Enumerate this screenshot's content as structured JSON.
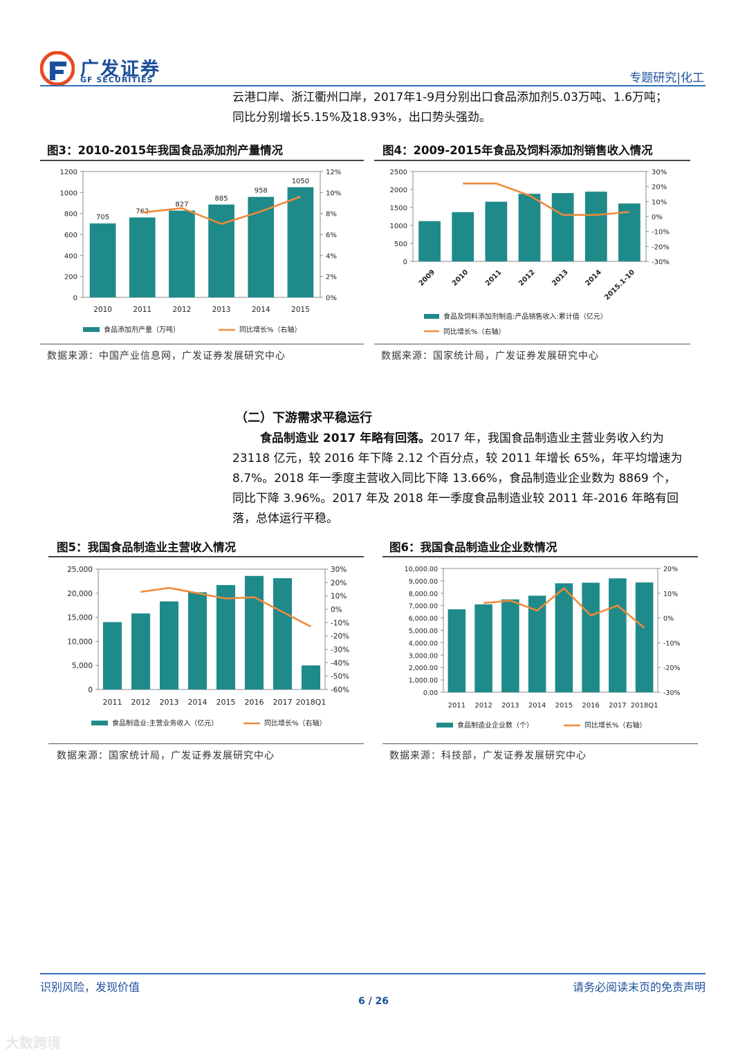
{
  "header": {
    "brand_cn": "广发证券",
    "brand_en": "GF SECURITIES",
    "section": "专题研究|化工"
  },
  "intro": {
    "line1": "云港口岸、浙江衢州口岸，2017年1-9月分别出口食品添加剂5.03万吨、1.6万吨；",
    "line2": "同比分别增长5.15%及18.93%，出口势头强劲。"
  },
  "section2": {
    "heading": "（二）下游需求平稳运行",
    "lead_bold": "食品制造业 2017 年略有回落。",
    "p_line1": "2017 年，我国食品制造业主营业务收入约为",
    "p_line2": "23118 亿元，较 2016 年下降 2.12 个百分点，较 2011 年增长 65%，年平均增速为",
    "p_line3": "8.7%。2018 年一季度主营收入同比下降 13.66%，食品制造业企业数为 8869 个，",
    "p_line4": "同比下降 3.96%。2017 年及 2018 年一季度食品制造业较 2011 年-2016 年略有回",
    "p_line5": "落，总体运行平稳。"
  },
  "footer": {
    "left": "识别风险，发现价值",
    "right": "请务必阅读末页的免责声明",
    "page": "6 / 26"
  },
  "watermark": "大数跨境",
  "colors": {
    "bar": "#1f8a8a",
    "line": "#ee8a3a",
    "brand": "#1b4f9c"
  },
  "chart_data": [
    {
      "id": "fig3",
      "type": "bar",
      "title": "图3：2010-2015年我国食品添加剂产量情况",
      "source": "数据来源：中国产业信息网，广发证券发展研究中心",
      "categories": [
        "2010",
        "2011",
        "2012",
        "2013",
        "2014",
        "2015"
      ],
      "ylim": [
        0,
        1200
      ],
      "yticks": [
        "0",
        "200",
        "400",
        "600",
        "800",
        "1000",
        "1200"
      ],
      "y2lim": [
        0,
        12
      ],
      "y2ticks": [
        "0%",
        "2%",
        "4%",
        "6%",
        "8%",
        "10%",
        "12%"
      ],
      "series": [
        {
          "name": "食品添加剂产量（万吨）",
          "type": "bar",
          "axis": "left",
          "values": [
            705,
            762,
            827,
            885,
            958,
            1050
          ]
        },
        {
          "name": "同比增长%（右轴）",
          "type": "line",
          "axis": "right",
          "values": [
            null,
            8.1,
            8.5,
            7.0,
            8.2,
            9.6
          ]
        }
      ],
      "data_labels": [
        "705",
        "762",
        "827",
        "885",
        "958",
        "1050"
      ]
    },
    {
      "id": "fig4",
      "type": "bar",
      "title": "图4：2009-2015年食品及饲料添加剂销售收入情况",
      "source": "数据来源：国家统计局，广发证券发展研究中心",
      "categories": [
        "2009",
        "2010",
        "2011",
        "2012",
        "2013",
        "2014",
        "2015.1-10"
      ],
      "ylim": [
        0,
        2500
      ],
      "yticks": [
        "0",
        "500",
        "1000",
        "1500",
        "2000",
        "2500"
      ],
      "y2lim": [
        -30,
        30
      ],
      "y2ticks": [
        "-30%",
        "-20%",
        "-10%",
        "0%",
        "10%",
        "20%",
        "30%"
      ],
      "series": [
        {
          "name": "食品及饲料添加剂制造:产品销售收入:累计值（亿元）",
          "type": "bar",
          "axis": "left",
          "values": [
            1120,
            1370,
            1660,
            1880,
            1900,
            1940,
            1610
          ]
        },
        {
          "name": "同比增长%（右轴）",
          "type": "line",
          "axis": "right",
          "values": [
            null,
            22,
            22,
            14,
            1,
            1,
            3
          ]
        }
      ]
    },
    {
      "id": "fig5",
      "type": "bar",
      "title": "图5：我国食品制造业主营收入情况",
      "source": "数据来源：国家统计局，广发证券发展研究中心",
      "categories": [
        "2011",
        "2012",
        "2013",
        "2014",
        "2015",
        "2016",
        "2017",
        "2018Q1"
      ],
      "ylim": [
        0,
        25000
      ],
      "yticks": [
        "0",
        "5,000",
        "10,000",
        "15,000",
        "20,000",
        "25,000"
      ],
      "y2lim": [
        -60,
        30
      ],
      "y2ticks": [
        "-60%",
        "-50%",
        "-40%",
        "-30%",
        "-20%",
        "-10%",
        "0%",
        "10%",
        "20%",
        "30%"
      ],
      "series": [
        {
          "name": "食品制造业:主营业务收入（亿元）",
          "type": "bar",
          "axis": "left",
          "values": [
            14000,
            15800,
            18300,
            20200,
            21700,
            23600,
            23118,
            5000
          ]
        },
        {
          "name": "同比增长%（右轴）",
          "type": "line",
          "axis": "right",
          "values": [
            null,
            13,
            16,
            12,
            8,
            9,
            -2,
            -13
          ]
        }
      ]
    },
    {
      "id": "fig6",
      "type": "bar",
      "title": "图6：我国食品制造业企业数情况",
      "source": "数据来源：科技部，广发证券发展研究中心",
      "categories": [
        "2011",
        "2012",
        "2013",
        "2014",
        "2015",
        "2016",
        "2017",
        "2018Q1"
      ],
      "ylim": [
        0,
        10000
      ],
      "yticks": [
        "0.00",
        "1,000.00",
        "2,000.00",
        "3,000.00",
        "4,000.00",
        "5,000.00",
        "6,000.00",
        "7,000.00",
        "8,000.00",
        "9,000.00",
        "10,000.00"
      ],
      "y2lim": [
        -30,
        20
      ],
      "y2ticks": [
        "-30%",
        "-20%",
        "-10%",
        "0%",
        "10%",
        "20%"
      ],
      "series": [
        {
          "name": "食品制造业企业数（个）",
          "type": "bar",
          "axis": "left",
          "values": [
            6700,
            7100,
            7500,
            7800,
            8800,
            8850,
            9200,
            8869
          ]
        },
        {
          "name": "同比增长%（右轴）",
          "type": "line",
          "axis": "right",
          "values": [
            null,
            6,
            7,
            3,
            12,
            1,
            5,
            -4
          ]
        }
      ]
    }
  ]
}
